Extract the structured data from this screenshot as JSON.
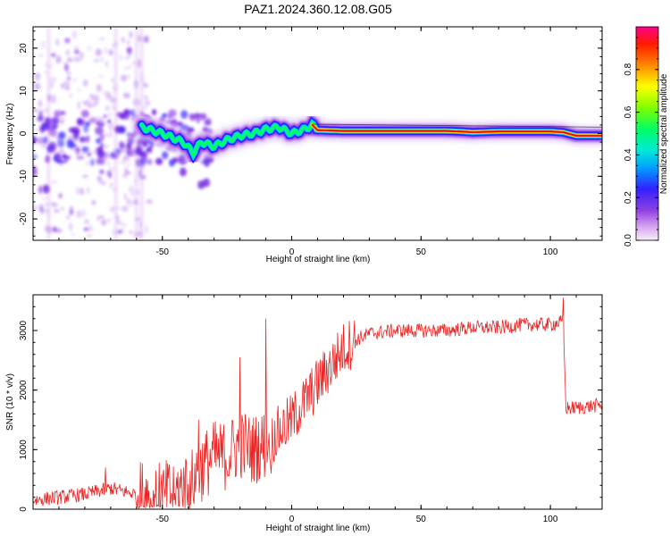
{
  "page": {
    "title": "PAZ1.2024.360.12.08.G05"
  },
  "colors": {
    "snr_line": "#ee2222",
    "colormap": [
      "#f0d8f0",
      "#9040e0",
      "#4020ff",
      "#00ccff",
      "#00ff66",
      "#ffff00",
      "#ff8800",
      "#ff0000",
      "#ff0088"
    ]
  },
  "chart_data": [
    {
      "type": "heatmap",
      "title": "PAZ1.2024.360.12.08.G05",
      "xlabel": "Height of straight line (km)",
      "ylabel": "Frequency (Hz)",
      "xlim": [
        -100,
        120
      ],
      "ylim": [
        -25,
        25
      ],
      "xticks": [
        -50,
        0,
        50,
        100
      ],
      "yticks": [
        -20,
        -10,
        0,
        10,
        20
      ],
      "colorbar": {
        "label": "Normalized spectral amplitude",
        "range": [
          0,
          1
        ],
        "ticks": [
          "0.0",
          "0.2",
          "0.4",
          "0.6",
          "0.8"
        ]
      },
      "ridge": {
        "x": [
          -58,
          -50,
          -42,
          -38,
          -35,
          -30,
          -25,
          -20,
          -15,
          -10,
          -5,
          0,
          5,
          8,
          10,
          20,
          40,
          60,
          65,
          70,
          80,
          90,
          100,
          105,
          110,
          120
        ],
        "y": [
          1.5,
          0,
          -2,
          -4.5,
          -2,
          -3,
          -1.5,
          -0.5,
          0,
          1,
          1.5,
          0,
          1,
          2,
          0.8,
          0.6,
          0.6,
          0.6,
          0.5,
          0.3,
          0.5,
          0.5,
          0.5,
          0.3,
          -0.5,
          -0.5
        ]
      }
    },
    {
      "type": "line",
      "xlabel": "Height of straight line (km)",
      "ylabel": "SNR (10 * v/v)",
      "xlim": [
        -100,
        120
      ],
      "ylim": [
        0,
        3600
      ],
      "xticks": [
        -50,
        0,
        50,
        100
      ],
      "yticks": [
        0,
        1000,
        2000,
        3000
      ],
      "trend": {
        "x": [
          -100,
          -90,
          -80,
          -70,
          -60,
          -50,
          -40,
          -35,
          -30,
          -25,
          -20,
          -15,
          -10,
          -5,
          0,
          5,
          10,
          15,
          20,
          25,
          30,
          40,
          50,
          60,
          70,
          80,
          90,
          100,
          105,
          106,
          110,
          120
        ],
        "y": [
          150,
          200,
          250,
          350,
          250,
          200,
          400,
          700,
          900,
          900,
          1100,
          1000,
          1100,
          1300,
          1500,
          1800,
          2100,
          2400,
          2700,
          2850,
          2950,
          3000,
          3000,
          3000,
          3050,
          3050,
          3100,
          3100,
          3150,
          1700,
          1700,
          1750
        ]
      },
      "noise": [
        {
          "x0": -100,
          "x1": -60,
          "amp": 120
        },
        {
          "x0": -60,
          "x1": -10,
          "amp": 600
        },
        {
          "x0": -10,
          "x1": 25,
          "amp": 450
        },
        {
          "x0": 25,
          "x1": 120,
          "amp": 120
        }
      ],
      "spikes": [
        {
          "x": -72,
          "y": 700
        },
        {
          "x": -36,
          "y": 1500
        },
        {
          "x": -20,
          "y": 2550
        },
        {
          "x": -10,
          "y": 3200
        },
        {
          "x": -8,
          "y": 600
        },
        {
          "x": 105,
          "y": 3550
        }
      ]
    }
  ]
}
